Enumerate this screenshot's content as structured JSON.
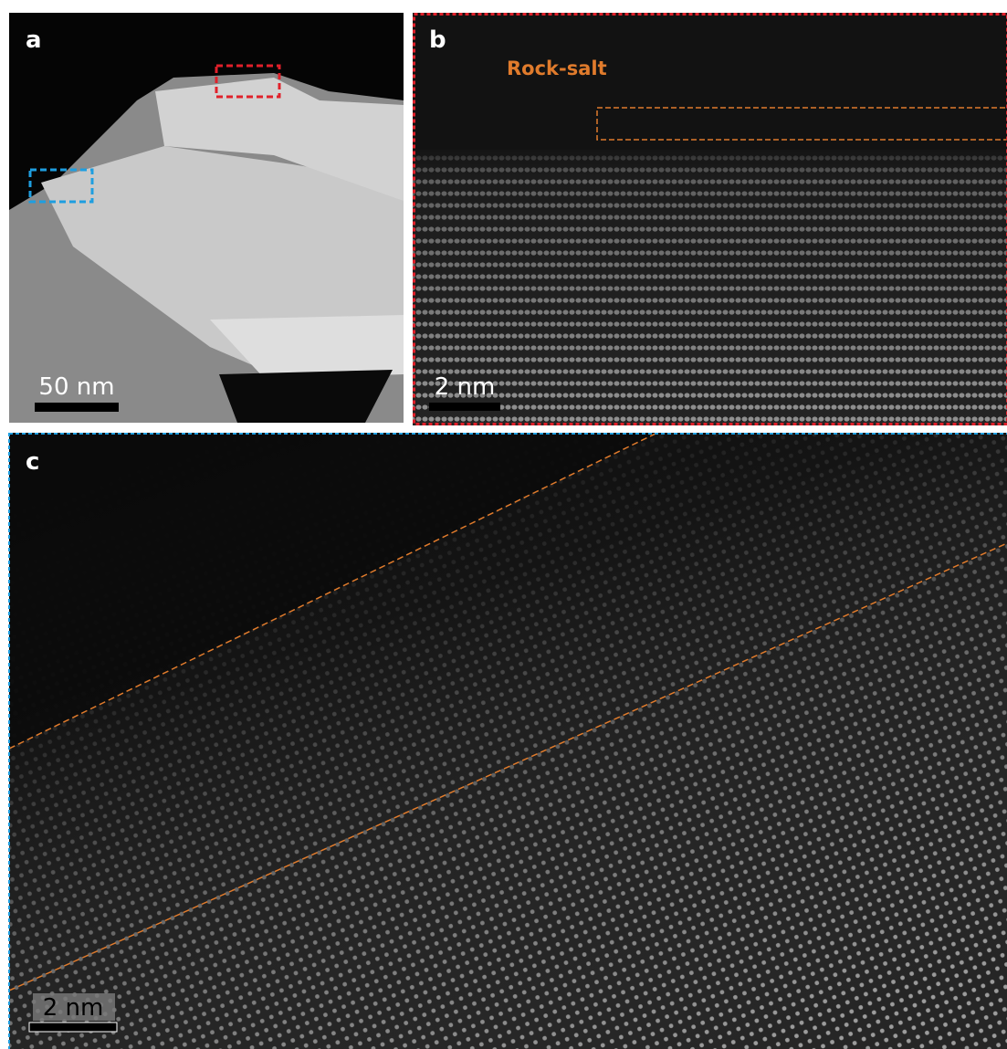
{
  "panels": [
    {
      "label": "a",
      "scale_bar": "50 nm"
    },
    {
      "label": "b",
      "scale_bar": "2 nm",
      "annotation": "Rock-salt"
    },
    {
      "label": "c",
      "scale_bar": "2 nm"
    }
  ]
}
